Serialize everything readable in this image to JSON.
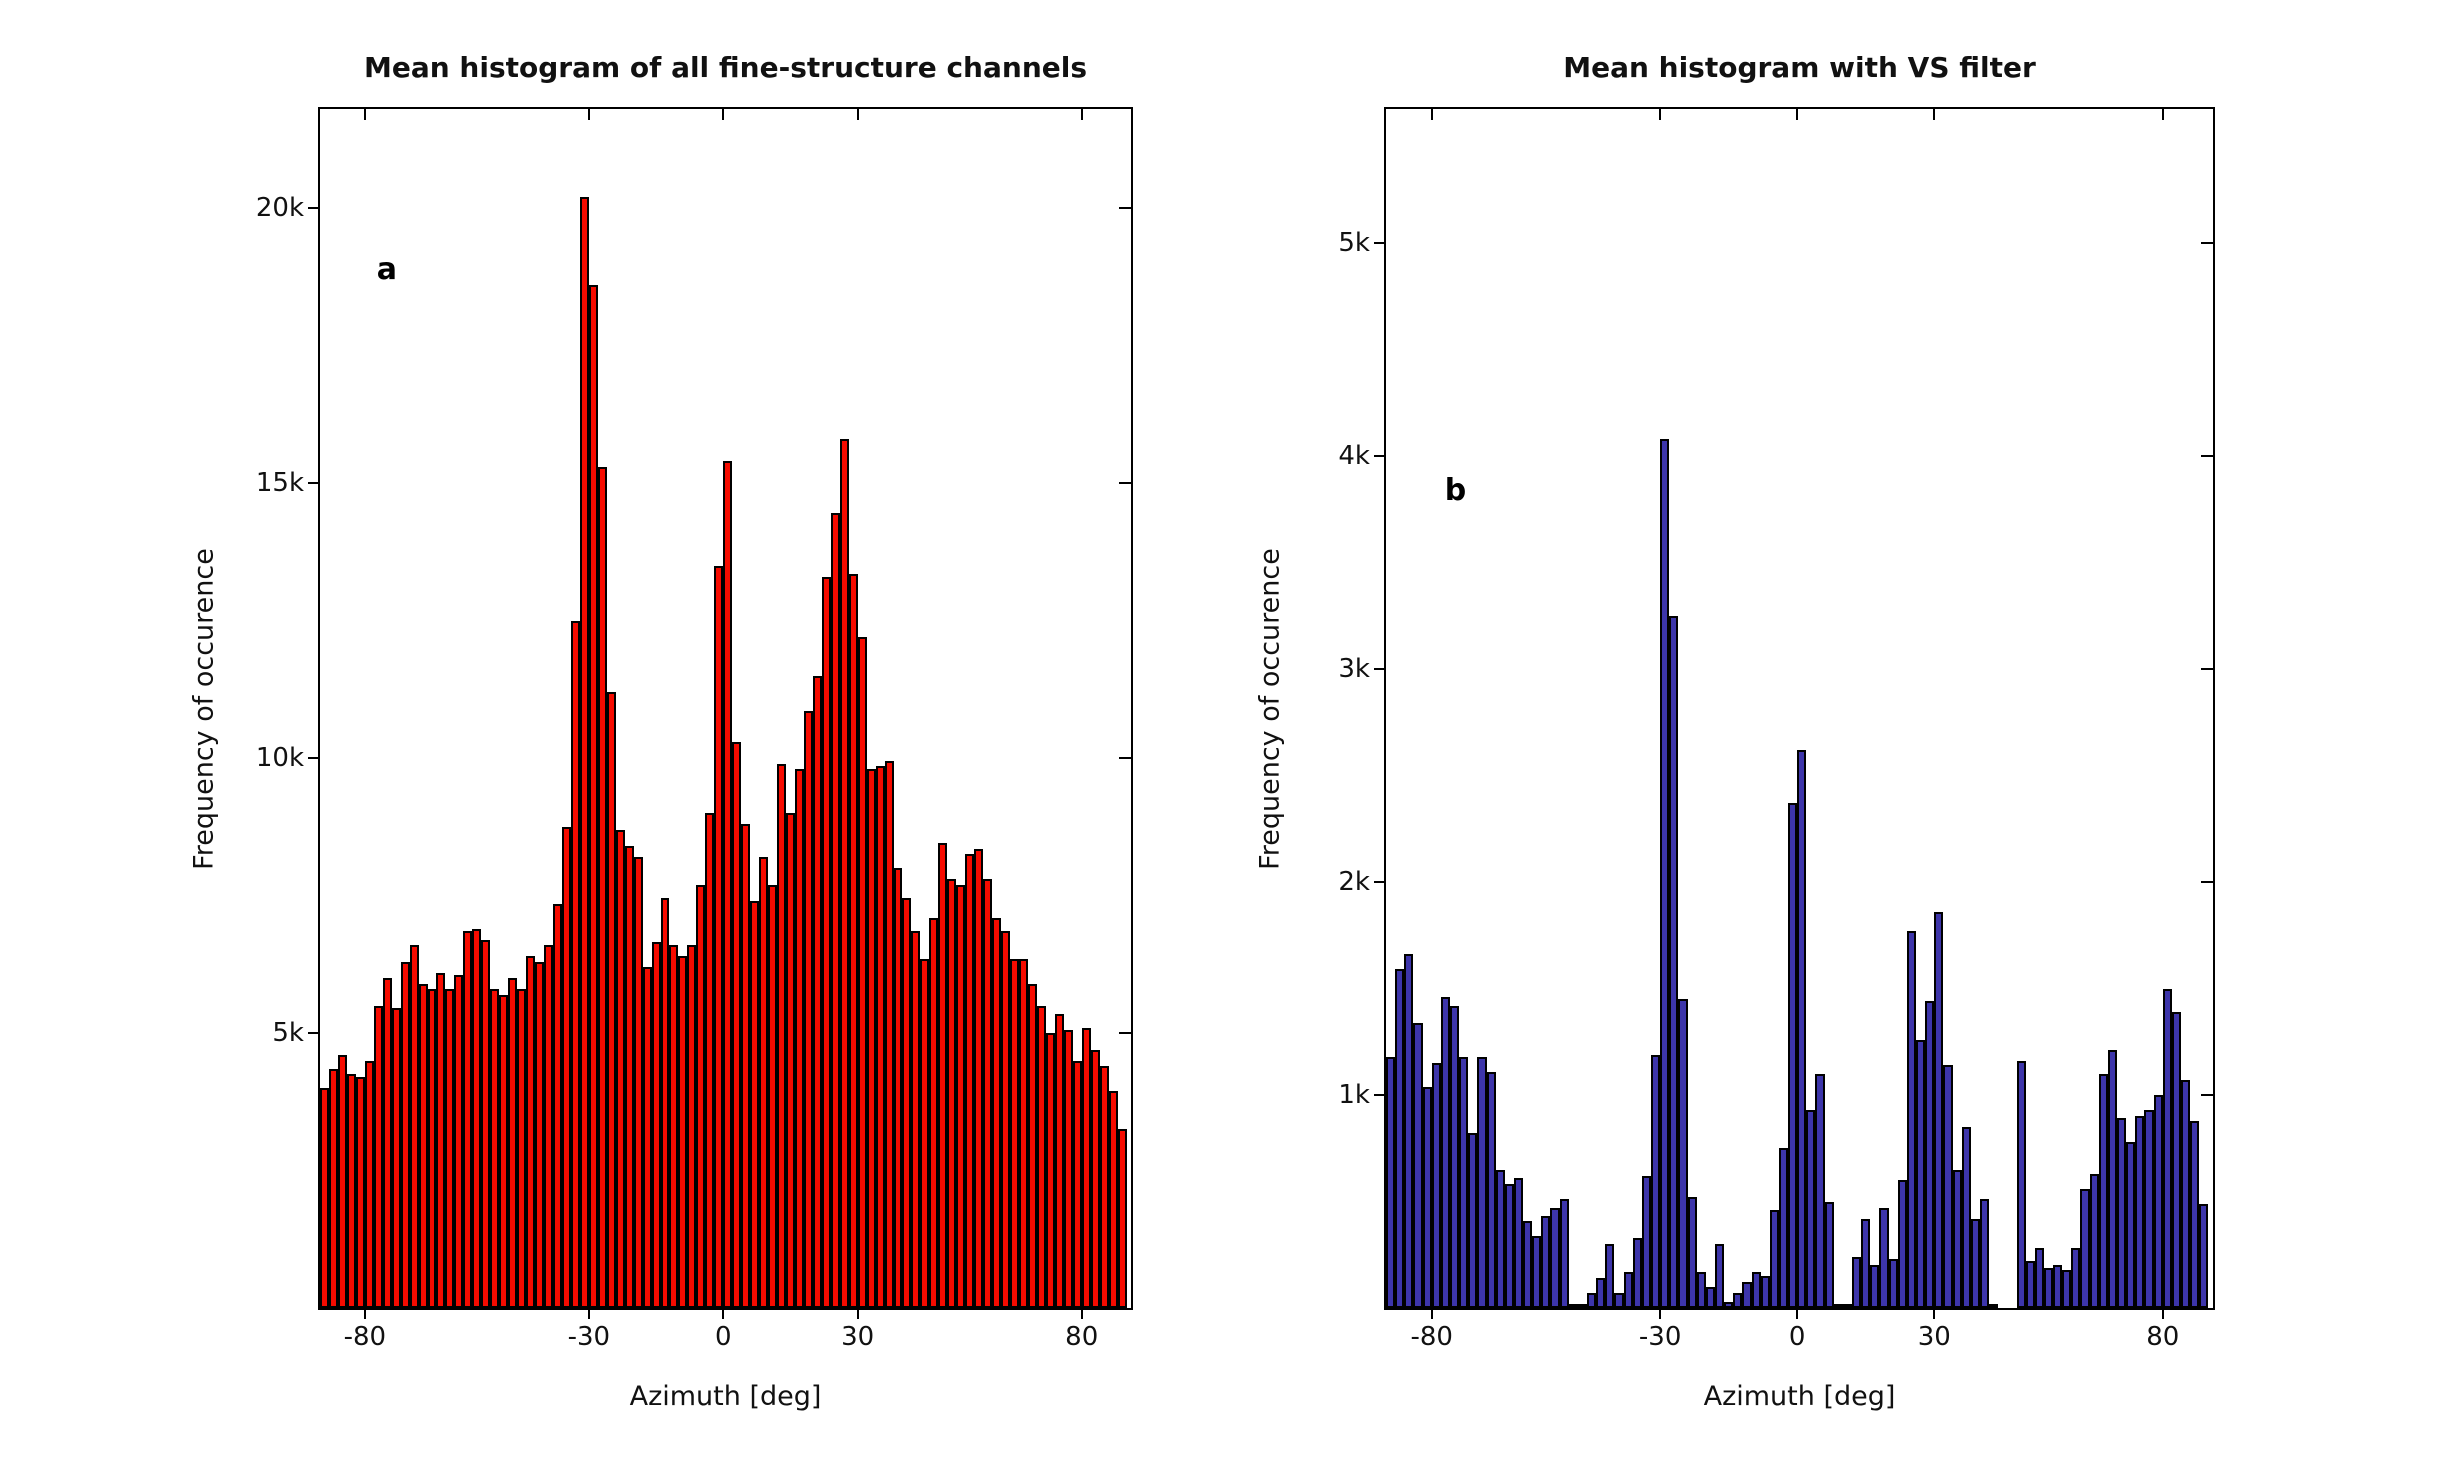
{
  "figure": {
    "background": "#ffffff",
    "text_color": "#111111",
    "axis_color": "#000000"
  },
  "chart_data": [
    {
      "type": "bar",
      "title": "Mean histogram of all fine-structure channels",
      "xlabel": "Azimuth [deg]",
      "ylabel": "Frequency of occurence",
      "panel_letter": "a",
      "letter_pos": {
        "x_pct": 7.0,
        "y_pct": 11.9
      },
      "bar_color": "#f60b00",
      "edge_color": "#000000",
      "xlim": [
        -90,
        91
      ],
      "ylim_k": [
        0,
        21.8
      ],
      "bin_start_deg": -90,
      "bin_width_deg": 2,
      "xticks": [
        {
          "v": -80,
          "label": "-80"
        },
        {
          "v": -30,
          "label": "-30"
        },
        {
          "v": 0,
          "label": "0"
        },
        {
          "v": 30,
          "label": "30"
        },
        {
          "v": 80,
          "label": "80"
        }
      ],
      "yticks": [
        {
          "v": 5,
          "label": "5k"
        },
        {
          "v": 10,
          "label": "10k"
        },
        {
          "v": 15,
          "label": "15k"
        },
        {
          "v": 20,
          "label": "20k"
        }
      ],
      "values_k": [
        4.0,
        4.35,
        4.6,
        4.25,
        4.2,
        4.5,
        5.5,
        6.0,
        5.45,
        6.3,
        6.6,
        5.9,
        5.8,
        6.1,
        5.8,
        6.05,
        6.85,
        6.9,
        6.7,
        5.8,
        5.7,
        6.0,
        5.8,
        6.4,
        6.3,
        6.6,
        7.35,
        8.75,
        12.5,
        20.2,
        18.6,
        15.3,
        11.2,
        8.7,
        8.4,
        8.2,
        6.2,
        6.65,
        7.45,
        6.6,
        6.4,
        6.6,
        7.7,
        9.0,
        13.5,
        15.4,
        10.3,
        8.8,
        7.4,
        8.2,
        7.7,
        9.9,
        9.0,
        9.8,
        10.85,
        11.5,
        13.3,
        14.45,
        15.8,
        13.35,
        12.2,
        9.8,
        9.85,
        9.95,
        8.0,
        7.45,
        6.85,
        6.35,
        7.1,
        8.45,
        7.8,
        7.7,
        8.25,
        8.35,
        7.8,
        7.1,
        6.85,
        6.35,
        6.35,
        5.9,
        5.5,
        5.0,
        5.35,
        5.05,
        4.5,
        5.1,
        4.7,
        4.4,
        3.95,
        3.25
      ]
    },
    {
      "type": "bar",
      "title": "Mean histogram with VS filter",
      "xlabel": "Azimuth [deg]",
      "ylabel": "Frequency of occurence",
      "panel_letter": "b",
      "letter_pos": {
        "x_pct": 7.1,
        "y_pct": 30.4
      },
      "bar_color": "#3d35aa",
      "edge_color": "#000000",
      "xlim": [
        -90,
        91
      ],
      "ylim_k": [
        0,
        5.63
      ],
      "bin_start_deg": -90,
      "bin_width_deg": 2,
      "xticks": [
        {
          "v": -80,
          "label": "-80"
        },
        {
          "v": -30,
          "label": "-30"
        },
        {
          "v": 0,
          "label": "0"
        },
        {
          "v": 30,
          "label": "30"
        },
        {
          "v": 80,
          "label": "80"
        }
      ],
      "yticks": [
        {
          "v": 1,
          "label": "1k"
        },
        {
          "v": 2,
          "label": "2k"
        },
        {
          "v": 3,
          "label": "3k"
        },
        {
          "v": 4,
          "label": "4k"
        },
        {
          "v": 5,
          "label": "5k"
        }
      ],
      "values_k": [
        1.18,
        1.59,
        1.66,
        1.34,
        1.04,
        1.15,
        1.46,
        1.42,
        1.18,
        0.82,
        1.18,
        1.11,
        0.65,
        0.58,
        0.61,
        0.41,
        0.34,
        0.43,
        0.47,
        0.51,
        0.02,
        0.01,
        0.07,
        0.14,
        0.3,
        0.07,
        0.17,
        0.33,
        0.62,
        1.19,
        4.08,
        3.25,
        1.45,
        0.52,
        0.17,
        0.1,
        0.3,
        0.03,
        0.07,
        0.12,
        0.17,
        0.15,
        0.46,
        0.75,
        2.37,
        2.62,
        0.93,
        1.1,
        0.5,
        0.02,
        0.02,
        0.24,
        0.42,
        0.2,
        0.47,
        0.23,
        0.6,
        1.77,
        1.26,
        1.44,
        1.86,
        1.14,
        0.65,
        0.85,
        0.42,
        0.51,
        0.01,
        0.0,
        0.0,
        1.16,
        0.22,
        0.28,
        0.19,
        0.2,
        0.18,
        0.28,
        0.56,
        0.63,
        1.1,
        1.21,
        0.89,
        0.78,
        0.9,
        0.93,
        1.0,
        1.5,
        1.39,
        1.07,
        0.88,
        0.49
      ]
    }
  ]
}
